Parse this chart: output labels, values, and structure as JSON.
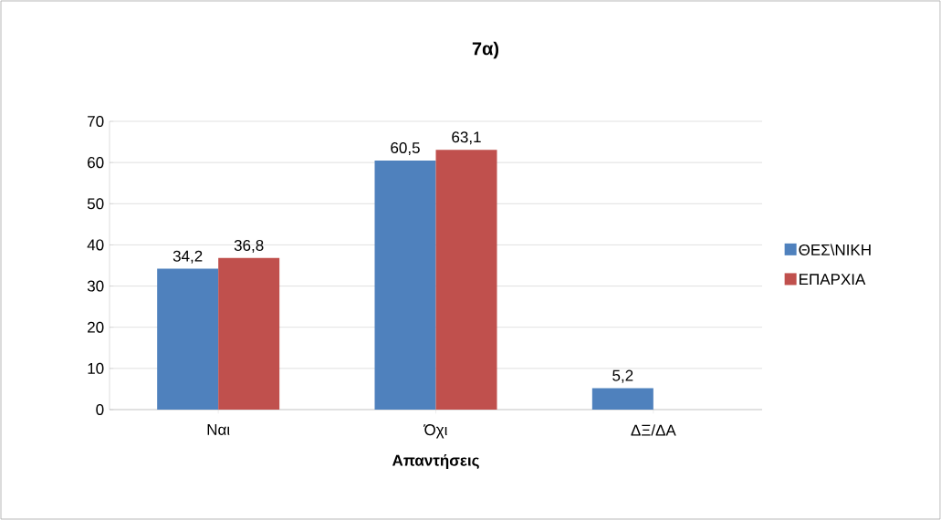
{
  "chart_data": {
    "type": "bar",
    "title": "7α)",
    "xlabel": "Απαντήσεις",
    "categories": [
      "Ναι",
      "Όχι",
      "ΔΞ/ΔΑ"
    ],
    "series": [
      {
        "name": "ΘΕΣ\\ΝΙΚΗ",
        "color": "#4f81bd",
        "values": [
          34.2,
          60.5,
          5.2
        ],
        "value_labels": [
          "34,2",
          "60,5",
          "5,2"
        ]
      },
      {
        "name": "ΕΠΑΡΧΙΑ",
        "color": "#c0504d",
        "values": [
          36.8,
          63.1,
          null
        ],
        "value_labels": [
          "36,8",
          "63,1",
          null
        ]
      }
    ],
    "ylim": [
      0,
      70
    ],
    "yticks": [
      0,
      10,
      20,
      30,
      40,
      50,
      60,
      70
    ],
    "grid": "y",
    "legend": "right"
  }
}
